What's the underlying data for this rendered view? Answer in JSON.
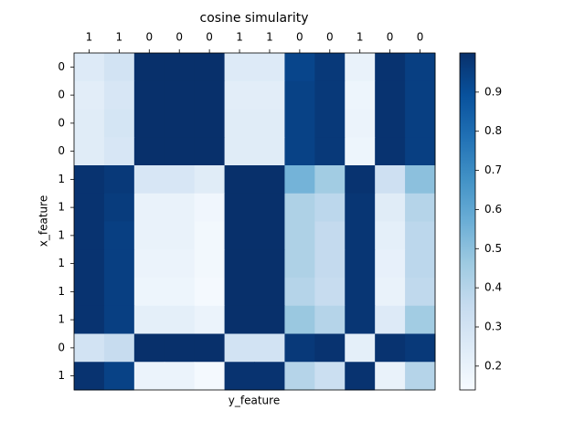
{
  "chart_data": {
    "type": "heatmap",
    "title": "cosine simularity",
    "x_label": "y_feature",
    "y_label": "x_feature",
    "x_categories": [
      "1",
      "1",
      "0",
      "0",
      "0",
      "1",
      "1",
      "0",
      "0",
      "1",
      "0",
      "0"
    ],
    "y_categories": [
      "0",
      "0",
      "0",
      "0",
      "1",
      "1",
      "1",
      "1",
      "1",
      "1",
      "0",
      "1"
    ],
    "values": [
      [
        0.25,
        0.3,
        1,
        1,
        1,
        0.25,
        0.25,
        0.93,
        0.97,
        0.2,
        0.99,
        0.95
      ],
      [
        0.23,
        0.28,
        1,
        1,
        1,
        0.23,
        0.23,
        0.94,
        0.97,
        0.18,
        0.99,
        0.95
      ],
      [
        0.24,
        0.29,
        1,
        1,
        1,
        0.24,
        0.24,
        0.94,
        0.97,
        0.19,
        0.99,
        0.95
      ],
      [
        0.24,
        0.28,
        1,
        1,
        1,
        0.24,
        0.24,
        0.94,
        0.97,
        0.18,
        0.99,
        0.95
      ],
      [
        0.99,
        0.97,
        0.28,
        0.28,
        0.24,
        1,
        1,
        0.55,
        0.45,
        0.99,
        0.32,
        0.5
      ],
      [
        0.99,
        0.96,
        0.2,
        0.2,
        0.17,
        1,
        1,
        0.42,
        0.38,
        0.98,
        0.24,
        0.4
      ],
      [
        0.99,
        0.95,
        0.2,
        0.2,
        0.16,
        1,
        1,
        0.42,
        0.36,
        0.98,
        0.22,
        0.38
      ],
      [
        0.99,
        0.95,
        0.19,
        0.19,
        0.16,
        1,
        1,
        0.42,
        0.36,
        0.98,
        0.21,
        0.38
      ],
      [
        0.99,
        0.95,
        0.18,
        0.18,
        0.15,
        1,
        1,
        0.4,
        0.35,
        0.98,
        0.2,
        0.37
      ],
      [
        0.99,
        0.95,
        0.22,
        0.22,
        0.19,
        1,
        1,
        0.47,
        0.4,
        0.98,
        0.25,
        0.45
      ],
      [
        0.3,
        0.35,
        1,
        1,
        1,
        0.3,
        0.3,
        0.97,
        0.99,
        0.22,
        0.99,
        0.97
      ],
      [
        0.99,
        0.94,
        0.19,
        0.19,
        0.15,
        0.99,
        0.99,
        0.4,
        0.33,
        0.99,
        0.2,
        0.4
      ]
    ],
    "colormap": "Blues",
    "clim": [
      0.139,
      1.0
    ],
    "colorbar_ticks": [
      0.2,
      0.3,
      0.4,
      0.5,
      0.6,
      0.7,
      0.8,
      0.9
    ]
  }
}
